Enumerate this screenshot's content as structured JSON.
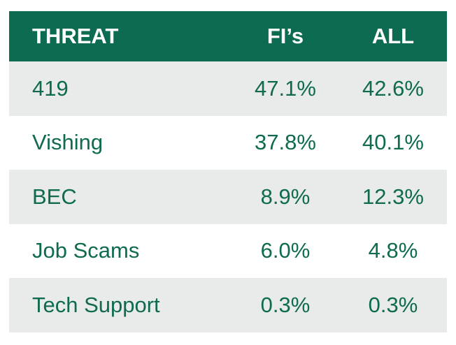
{
  "chart_data": {
    "type": "table",
    "columns": [
      "THREAT",
      "FI’s",
      "ALL"
    ],
    "rows": [
      {
        "threat": "419",
        "fis": "47.1%",
        "all": "42.6%"
      },
      {
        "threat": "Vishing",
        "fis": "37.8%",
        "all": "40.1%"
      },
      {
        "threat": "BEC",
        "fis": "8.9%",
        "all": "12.3%"
      },
      {
        "threat": "Job Scams",
        "fis": "6.0%",
        "all": "4.8%"
      },
      {
        "threat": "Tech Support",
        "fis": "0.3%",
        "all": "0.3%"
      }
    ]
  },
  "colors": {
    "header_bg": "#0d6b52",
    "header_text": "#ffffff",
    "row_shade": "#e8ebe9",
    "text": "#0e6b4f"
  }
}
